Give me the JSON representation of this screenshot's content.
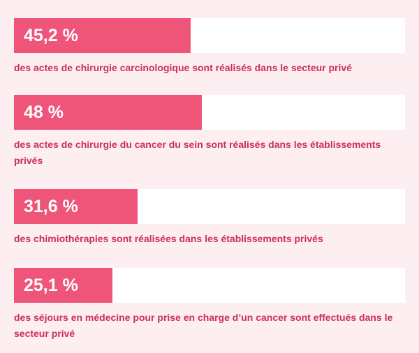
{
  "chart_data": {
    "type": "bar",
    "orientation": "horizontal",
    "xlim": [
      0,
      100
    ],
    "colors": {
      "fill": "#ef5479",
      "track": "#ffffff",
      "background": "#fdeef2",
      "caption": "#cc2e5a",
      "value_text": "#ffffff"
    },
    "items": [
      {
        "value": 45.2,
        "value_label": "45,2 %",
        "caption": "des actes de chirurgie carcinologique sont réalisés dans le secteur privé"
      },
      {
        "value": 48,
        "value_label": "48 %",
        "caption": "des actes de chirurgie du cancer du sein sont réalisés dans les établissements privés"
      },
      {
        "value": 31.6,
        "value_label": "31,6 %",
        "caption": "des chimiothérapies sont réalisées dans les établissements privés"
      },
      {
        "value": 25.1,
        "value_label": "25,1 %",
        "caption": "des séjours en médecine pour prise en charge d’un cancer sont effectués dans le secteur privé"
      }
    ]
  }
}
